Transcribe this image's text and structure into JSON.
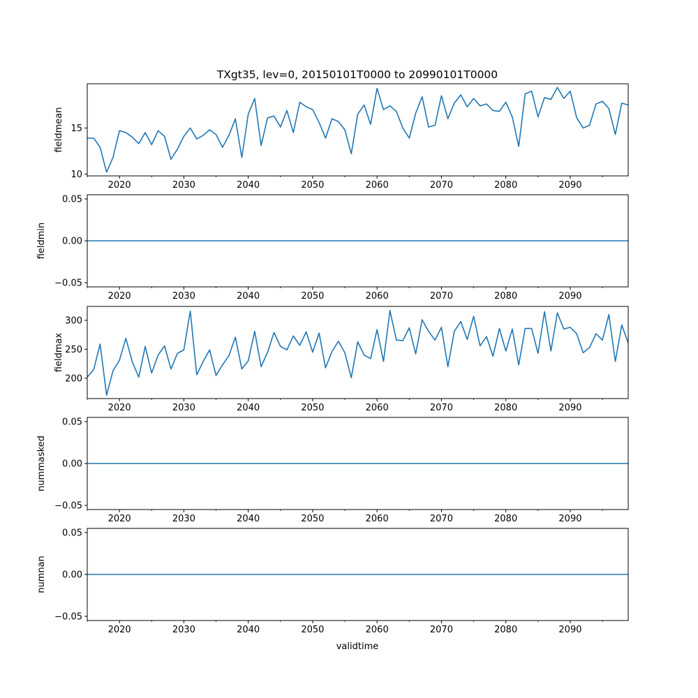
{
  "title": "TXgt35, lev=0, 20150101T0000 to 20990101T0000",
  "xlabel": "validtime",
  "colors": {
    "line": "#1f77b4",
    "axes": "#000000"
  },
  "chart_data": [
    {
      "type": "line",
      "ylabel": "fieldmean",
      "xlim": [
        2015,
        2099
      ],
      "ylim": [
        9.8,
        19.8
      ],
      "yticks": [
        10,
        15
      ],
      "ytick_labels": [
        "10",
        "15"
      ],
      "x": [
        2015,
        2016,
        2017,
        2018,
        2019,
        2020,
        2021,
        2022,
        2023,
        2024,
        2025,
        2026,
        2027,
        2028,
        2029,
        2030,
        2031,
        2032,
        2033,
        2034,
        2035,
        2036,
        2037,
        2038,
        2039,
        2040,
        2041,
        2042,
        2043,
        2044,
        2045,
        2046,
        2047,
        2048,
        2049,
        2050,
        2051,
        2052,
        2053,
        2054,
        2055,
        2056,
        2057,
        2058,
        2059,
        2060,
        2061,
        2062,
        2063,
        2064,
        2065,
        2066,
        2067,
        2068,
        2069,
        2070,
        2071,
        2072,
        2073,
        2074,
        2075,
        2076,
        2077,
        2078,
        2079,
        2080,
        2081,
        2082,
        2083,
        2084,
        2085,
        2086,
        2087,
        2088,
        2089,
        2090,
        2091,
        2092,
        2093,
        2094,
        2095,
        2096,
        2097,
        2098,
        2099
      ],
      "values": [
        13.9,
        13.9,
        12.9,
        10.2,
        11.8,
        14.7,
        14.5,
        14.0,
        13.3,
        14.5,
        13.2,
        14.7,
        14.1,
        11.6,
        12.7,
        14.1,
        15.0,
        13.8,
        14.2,
        14.8,
        14.3,
        12.9,
        14.2,
        16.0,
        11.8,
        16.5,
        18.2,
        13.1,
        16.1,
        16.3,
        15.1,
        16.9,
        14.5,
        17.8,
        17.3,
        17.0,
        15.6,
        13.9,
        16.0,
        15.7,
        14.8,
        12.2,
        16.5,
        17.5,
        15.4,
        19.3,
        17.0,
        17.4,
        16.8,
        15.0,
        13.9,
        16.6,
        18.4,
        15.1,
        15.3,
        18.5,
        16.0,
        17.7,
        18.6,
        17.3,
        18.2,
        17.4,
        17.6,
        16.9,
        16.8,
        17.8,
        16.2,
        13.0,
        18.7,
        19.0,
        16.2,
        18.3,
        18.1,
        19.4,
        18.2,
        19.0,
        16.1,
        15.0,
        15.3,
        17.6,
        17.9,
        17.1,
        14.3,
        17.7,
        17.5
      ]
    },
    {
      "type": "line",
      "ylabel": "fieldmin",
      "xlim": [
        2015,
        2099
      ],
      "ylim": [
        -0.055,
        0.055
      ],
      "yticks": [
        -0.05,
        0,
        0.05
      ],
      "ytick_labels": [
        "−0.05",
        "0.00",
        "0.05"
      ],
      "x": [
        2015,
        2099
      ],
      "values": [
        0,
        0
      ]
    },
    {
      "type": "line",
      "ylabel": "fieldmax",
      "xlim": [
        2015,
        2099
      ],
      "ylim": [
        165,
        324
      ],
      "yticks": [
        200,
        250,
        300
      ],
      "ytick_labels": [
        "200",
        "250",
        "300"
      ],
      "x": [
        2015,
        2016,
        2017,
        2018,
        2019,
        2020,
        2021,
        2022,
        2023,
        2024,
        2025,
        2026,
        2027,
        2028,
        2029,
        2030,
        2031,
        2032,
        2033,
        2034,
        2035,
        2036,
        2037,
        2038,
        2039,
        2040,
        2041,
        2042,
        2043,
        2044,
        2045,
        2046,
        2047,
        2048,
        2049,
        2050,
        2051,
        2052,
        2053,
        2054,
        2055,
        2056,
        2057,
        2058,
        2059,
        2060,
        2061,
        2062,
        2063,
        2064,
        2065,
        2066,
        2067,
        2068,
        2069,
        2070,
        2071,
        2072,
        2073,
        2074,
        2075,
        2076,
        2077,
        2078,
        2079,
        2080,
        2081,
        2082,
        2083,
        2084,
        2085,
        2086,
        2087,
        2088,
        2089,
        2090,
        2091,
        2092,
        2093,
        2094,
        2095,
        2096,
        2097,
        2098,
        2099
      ],
      "values": [
        202,
        215,
        259,
        171,
        213,
        231,
        269,
        228,
        202,
        255,
        209,
        240,
        256,
        216,
        243,
        249,
        316,
        206,
        229,
        249,
        205,
        223,
        239,
        271,
        216,
        230,
        281,
        220,
        245,
        279,
        255,
        249,
        273,
        257,
        280,
        245,
        278,
        218,
        246,
        264,
        244,
        201,
        263,
        240,
        234,
        284,
        229,
        317,
        266,
        265,
        287,
        242,
        301,
        281,
        266,
        288,
        220,
        281,
        298,
        267,
        307,
        256,
        272,
        238,
        286,
        247,
        285,
        223,
        286,
        286,
        243,
        315,
        247,
        313,
        285,
        288,
        277,
        244,
        253,
        277,
        266,
        310,
        229,
        292,
        261
      ]
    },
    {
      "type": "line",
      "ylabel": "nummasked",
      "xlim": [
        2015,
        2099
      ],
      "ylim": [
        -0.055,
        0.055
      ],
      "yticks": [
        -0.05,
        0,
        0.05
      ],
      "ytick_labels": [
        "−0.05",
        "0.00",
        "0.05"
      ],
      "x": [
        2015,
        2099
      ],
      "values": [
        0,
        0
      ]
    },
    {
      "type": "line",
      "ylabel": "numnan",
      "xlim": [
        2015,
        2099
      ],
      "ylim": [
        -0.055,
        0.055
      ],
      "yticks": [
        -0.05,
        0,
        0.05
      ],
      "ytick_labels": [
        "−0.05",
        "0.00",
        "0.05"
      ],
      "x": [
        2015,
        2099
      ],
      "values": [
        0,
        0
      ]
    }
  ],
  "xticks": [
    2020,
    2030,
    2040,
    2050,
    2060,
    2070,
    2080,
    2090
  ],
  "xtick_labels": [
    "2020",
    "2030",
    "2040",
    "2050",
    "2060",
    "2070",
    "2080",
    "2090"
  ],
  "x_minor_ticks": [
    2015,
    2025,
    2035,
    2045,
    2055,
    2065,
    2075,
    2085,
    2095
  ]
}
